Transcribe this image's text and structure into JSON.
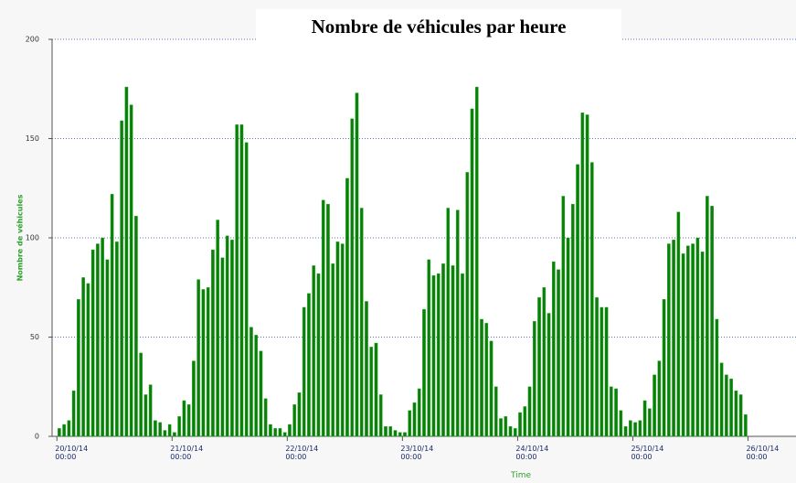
{
  "chart_data": {
    "type": "bar",
    "title": "Nombre de véhicules par heure",
    "x_label": "Time",
    "y_label": "Nombre de véhicules",
    "color": "#0a800a",
    "grid": true,
    "x": [
      0,
      1,
      2,
      3,
      4,
      5,
      6,
      7,
      8,
      9,
      10,
      11,
      12,
      13,
      14,
      15,
      16,
      17,
      18,
      19,
      20,
      21,
      22,
      23,
      24,
      25,
      26,
      27,
      28,
      29,
      30,
      31,
      32,
      33,
      34,
      35,
      36,
      37,
      38,
      39,
      40,
      41,
      42,
      43,
      44,
      45,
      46,
      47,
      48,
      49,
      50,
      51,
      52,
      53,
      54,
      55,
      56,
      57,
      58,
      59,
      60,
      61,
      62,
      63,
      64,
      65,
      66,
      67,
      68,
      69,
      70,
      71,
      72,
      73,
      74,
      75,
      76,
      77,
      78,
      79,
      80,
      81,
      82,
      83,
      84,
      85,
      86,
      87,
      88,
      89,
      90,
      91,
      92,
      93,
      94,
      95,
      96,
      97,
      98,
      99,
      100,
      101,
      102,
      103,
      104,
      105,
      106,
      107,
      108,
      109,
      110,
      111,
      112,
      113,
      114,
      115,
      116,
      117,
      118,
      119,
      120,
      121,
      122,
      123,
      124,
      125,
      126,
      127,
      128,
      129,
      130,
      131,
      132,
      133,
      134,
      135,
      136,
      137,
      138,
      139,
      140,
      141,
      142,
      143
    ],
    "values": [
      4,
      6,
      8,
      23,
      69,
      80,
      77,
      94,
      97,
      100,
      89,
      122,
      98,
      159,
      176,
      167,
      111,
      42,
      21,
      26,
      8,
      7,
      3,
      6,
      2,
      10,
      18,
      16,
      38,
      79,
      74,
      75,
      94,
      109,
      90,
      101,
      99,
      157,
      157,
      148,
      55,
      51,
      43,
      19,
      6,
      4,
      4,
      2,
      6,
      16,
      22,
      65,
      72,
      86,
      82,
      119,
      117,
      87,
      98,
      97,
      130,
      160,
      173,
      115,
      68,
      45,
      47,
      21,
      5,
      5,
      3,
      2,
      2,
      13,
      17,
      24,
      64,
      89,
      81,
      82,
      87,
      115,
      86,
      114,
      82,
      133,
      165,
      176,
      59,
      57,
      48,
      25,
      9,
      10,
      5,
      4,
      12,
      15,
      25,
      58,
      70,
      75,
      62,
      88,
      84,
      121,
      100,
      117,
      137,
      163,
      162,
      138,
      70,
      65,
      65,
      25,
      24,
      13,
      5,
      8,
      7,
      8,
      18,
      14,
      31,
      38,
      69,
      97,
      99,
      113,
      92,
      96,
      97,
      100,
      93,
      121,
      116,
      59,
      37,
      31,
      29,
      23,
      21,
      11
    ],
    "xlim": [
      -1,
      154
    ],
    "xticks": [
      {
        "value": 0,
        "label": "20/10/14 00:00"
      },
      {
        "value": 24,
        "label": "21/10/14 00:00"
      },
      {
        "value": 48,
        "label": "22/10/14 00:00"
      },
      {
        "value": 72,
        "label": "23/10/14 00:00"
      },
      {
        "value": 96,
        "label": "24/10/14 00:00"
      },
      {
        "value": 120,
        "label": "25/10/14 00:00"
      },
      {
        "value": 144,
        "label": "26/10/14 00:00"
      }
    ],
    "ylim": [
      0,
      200
    ],
    "yticks": [
      0,
      50,
      100,
      150,
      200
    ]
  }
}
